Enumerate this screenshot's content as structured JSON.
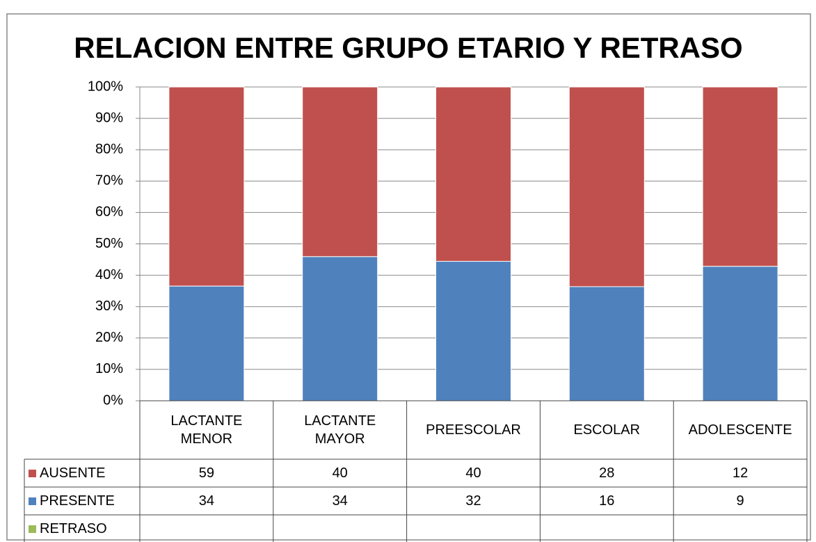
{
  "chart_data": {
    "type": "stacked_percent_bar",
    "title": "RELACION ENTRE GRUPO ETARIO Y RETRASO",
    "categories": [
      "LACTANTE MENOR",
      "LACTANTE MAYOR",
      "PREESCOLAR",
      "ESCOLAR",
      "ADOLESCENTE"
    ],
    "series": [
      {
        "name": "AUSENTE",
        "color": "#c0504d",
        "values": [
          59,
          40,
          40,
          28,
          12
        ]
      },
      {
        "name": "PRESENTE",
        "color": "#4f81bd",
        "values": [
          34,
          34,
          32,
          16,
          9
        ]
      },
      {
        "name": "RETRASO",
        "color": "#9bbb59",
        "values": [
          null,
          null,
          null,
          null,
          null
        ]
      }
    ],
    "ylim": [
      0,
      100
    ],
    "yticks": [
      {
        "value": 0,
        "label": "0%"
      },
      {
        "value": 10,
        "label": "10%"
      },
      {
        "value": 20,
        "label": "20%"
      },
      {
        "value": 30,
        "label": "30%"
      },
      {
        "value": 40,
        "label": "40%"
      },
      {
        "value": 50,
        "label": "50%"
      },
      {
        "value": 60,
        "label": "60%"
      },
      {
        "value": 70,
        "label": "70%"
      },
      {
        "value": 80,
        "label": "80%"
      },
      {
        "value": 90,
        "label": "90%"
      },
      {
        "value": 100,
        "label": "100%"
      }
    ],
    "grid": true,
    "legend": "table"
  }
}
